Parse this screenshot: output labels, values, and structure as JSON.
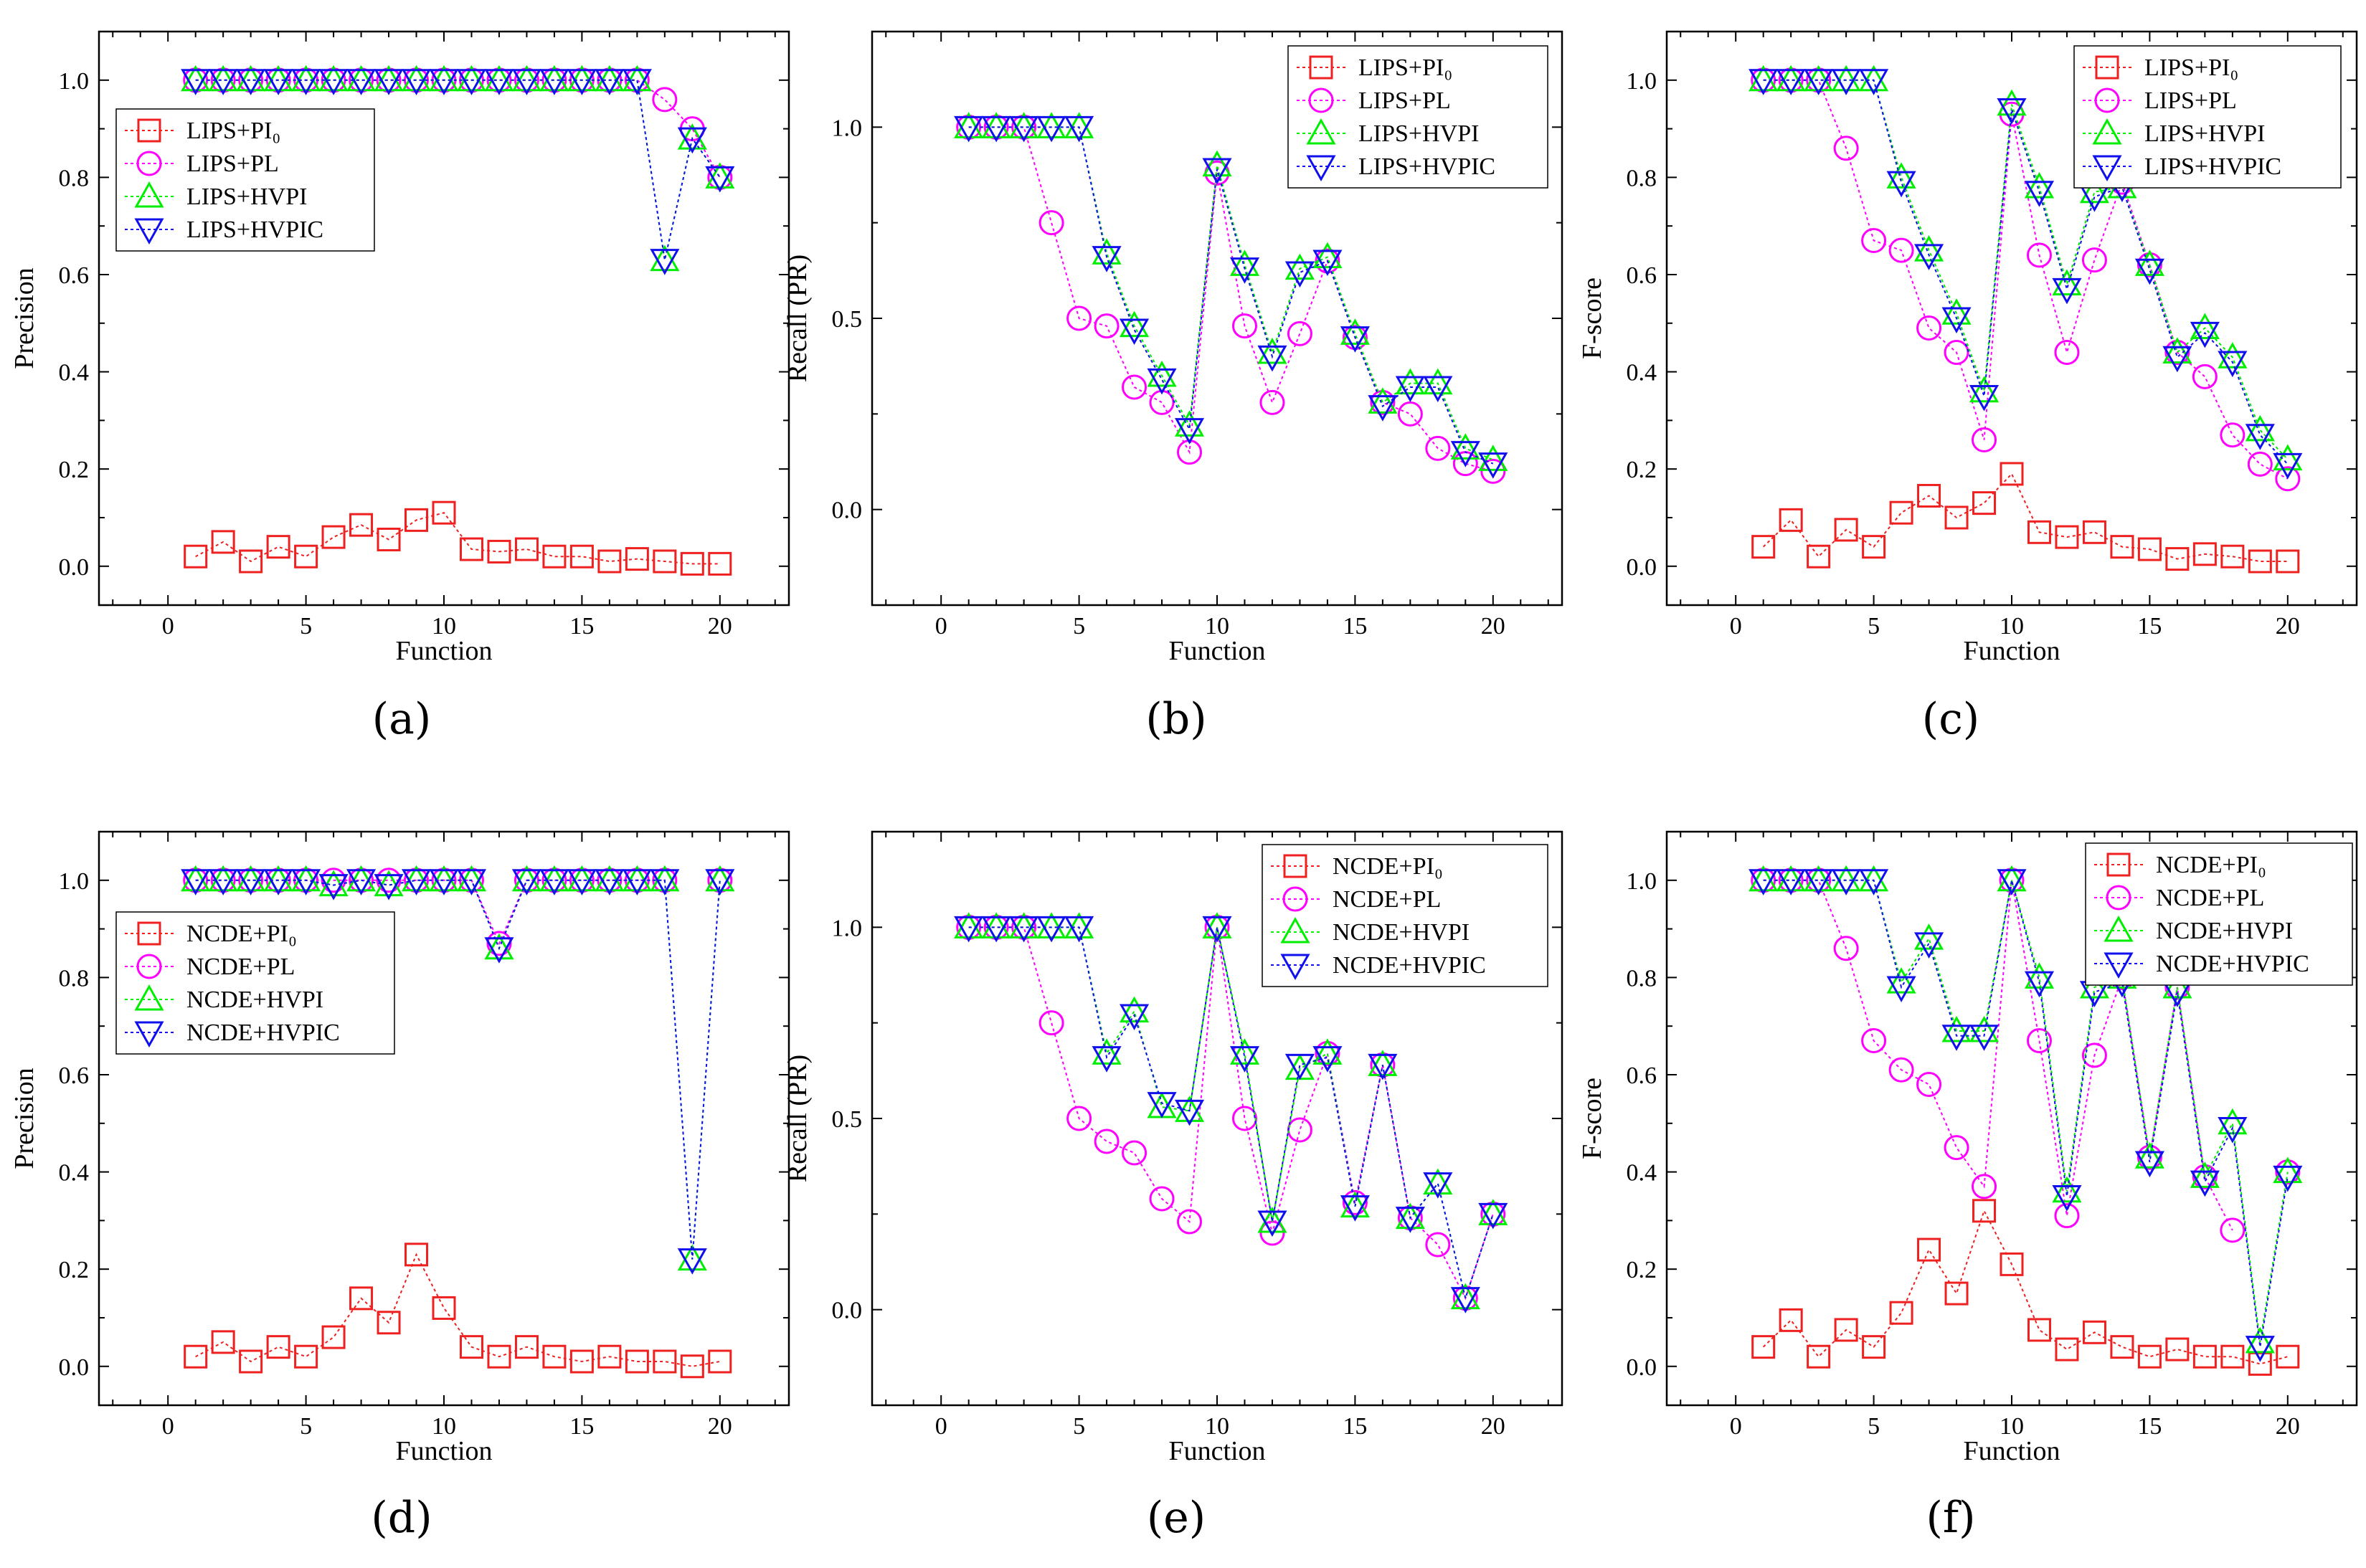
{
  "figure": {
    "panel_labels": [
      "(a)",
      "(b)",
      "(c)",
      "(d)",
      "(e)",
      "(f)"
    ]
  },
  "styles": {
    "series_colors": [
      "#ee2020",
      "#ff00ff",
      "#00ee00",
      "#1010ee"
    ],
    "markers": [
      "square",
      "circle",
      "triangle-up",
      "triangle-down"
    ]
  },
  "chart_data": [
    {
      "type": "line",
      "panel": "(a)",
      "xlabel": "Function",
      "ylabel": "Precision",
      "xlim": [
        -2.5,
        22.5
      ],
      "ylim": [
        -0.08,
        1.1
      ],
      "xticks": [
        0,
        5,
        10,
        15,
        20
      ],
      "yticks": [
        0.0,
        0.2,
        0.4,
        0.6,
        0.8,
        1.0
      ],
      "ytick_labels": [
        "0.0",
        "0.2",
        "0.4",
        "0.6",
        "0.8",
        "1.0"
      ],
      "legend_position": "left",
      "x": [
        1,
        2,
        3,
        4,
        5,
        6,
        7,
        8,
        9,
        10,
        11,
        12,
        13,
        14,
        15,
        16,
        17,
        18,
        19,
        20
      ],
      "series": [
        {
          "name": "LIPS+PI₀",
          "values": [
            0.02,
            0.05,
            0.01,
            0.04,
            0.02,
            0.06,
            0.085,
            0.055,
            0.095,
            0.11,
            0.035,
            0.03,
            0.035,
            0.02,
            0.02,
            0.01,
            0.015,
            0.01,
            0.005,
            0.005
          ]
        },
        {
          "name": "LIPS+PL",
          "values": [
            1.0,
            1.0,
            1.0,
            1.0,
            1.0,
            1.0,
            1.0,
            1.0,
            1.0,
            1.0,
            1.0,
            1.0,
            1.0,
            1.0,
            1.0,
            1.0,
            1.0,
            0.96,
            0.9,
            0.8
          ]
        },
        {
          "name": "LIPS+HVPI",
          "values": [
            1.0,
            1.0,
            1.0,
            1.0,
            1.0,
            1.0,
            1.0,
            1.0,
            1.0,
            1.0,
            1.0,
            1.0,
            1.0,
            1.0,
            1.0,
            1.0,
            1.0,
            0.63,
            0.88,
            0.8
          ]
        },
        {
          "name": "LIPS+HVPIC",
          "values": [
            1.0,
            1.0,
            1.0,
            1.0,
            1.0,
            1.0,
            1.0,
            1.0,
            1.0,
            1.0,
            1.0,
            1.0,
            1.0,
            1.0,
            1.0,
            1.0,
            1.0,
            0.63,
            0.88,
            0.8
          ]
        }
      ]
    },
    {
      "type": "line",
      "panel": "(b)",
      "xlabel": "Function",
      "ylabel": "Recall (PR)",
      "xlim": [
        -2.5,
        22.5
      ],
      "ylim": [
        -0.25,
        1.25
      ],
      "xticks": [
        0,
        5,
        10,
        15,
        20
      ],
      "yticks": [
        0.0,
        0.5,
        1.0
      ],
      "ytick_labels": [
        "0.0",
        "0.5",
        "1.0"
      ],
      "legend_position": "top-right",
      "x": [
        1,
        2,
        3,
        4,
        5,
        6,
        7,
        8,
        9,
        10,
        11,
        12,
        13,
        14,
        15,
        16,
        17,
        18,
        19,
        20
      ],
      "series": [
        {
          "name": "LIPS+PI₀",
          "values": [
            null,
            null,
            null,
            null,
            null,
            null,
            null,
            null,
            null,
            null,
            null,
            null,
            null,
            null,
            null,
            null,
            null,
            null,
            null,
            null
          ]
        },
        {
          "name": "LIPS+PL",
          "values": [
            1.0,
            1.0,
            1.0,
            0.75,
            0.5,
            0.48,
            0.32,
            0.28,
            0.15,
            0.88,
            0.48,
            0.28,
            0.46,
            0.65,
            0.45,
            0.28,
            0.25,
            0.16,
            0.12,
            0.1
          ]
        },
        {
          "name": "LIPS+HVPI",
          "values": [
            1.0,
            1.0,
            1.0,
            1.0,
            1.0,
            0.67,
            0.48,
            0.35,
            0.22,
            0.9,
            0.64,
            0.41,
            0.63,
            0.66,
            0.46,
            0.28,
            0.33,
            0.33,
            0.16,
            0.13
          ]
        },
        {
          "name": "LIPS+HVPIC",
          "values": [
            1.0,
            1.0,
            1.0,
            1.0,
            1.0,
            0.66,
            0.47,
            0.34,
            0.21,
            0.89,
            0.63,
            0.4,
            0.62,
            0.65,
            0.45,
            0.27,
            0.32,
            0.32,
            0.15,
            0.12
          ]
        }
      ]
    },
    {
      "type": "line",
      "panel": "(c)",
      "xlabel": "Function",
      "ylabel": "F-score",
      "xlim": [
        -2.5,
        22.5
      ],
      "ylim": [
        -0.08,
        1.1
      ],
      "xticks": [
        0,
        5,
        10,
        15,
        20
      ],
      "yticks": [
        0.0,
        0.2,
        0.4,
        0.6,
        0.8,
        1.0
      ],
      "ytick_labels": [
        "0.0",
        "0.2",
        "0.4",
        "0.6",
        "0.8",
        "1.0"
      ],
      "legend_position": "top-right",
      "x": [
        1,
        2,
        3,
        4,
        5,
        6,
        7,
        8,
        9,
        10,
        11,
        12,
        13,
        14,
        15,
        16,
        17,
        18,
        19,
        20
      ],
      "series": [
        {
          "name": "LIPS+PI₀",
          "values": [
            0.04,
            0.095,
            0.02,
            0.075,
            0.04,
            0.11,
            0.145,
            0.1,
            0.13,
            0.19,
            0.07,
            0.06,
            0.07,
            0.04,
            0.035,
            0.015,
            0.025,
            0.02,
            0.01,
            0.01
          ]
        },
        {
          "name": "LIPS+PL",
          "values": [
            1.0,
            1.0,
            1.0,
            0.86,
            0.67,
            0.65,
            0.49,
            0.44,
            0.26,
            0.93,
            0.64,
            0.44,
            0.63,
            0.79,
            0.62,
            0.44,
            0.39,
            0.27,
            0.21,
            0.18
          ]
        },
        {
          "name": "LIPS+HVPI",
          "values": [
            1.0,
            1.0,
            1.0,
            1.0,
            1.0,
            0.8,
            0.65,
            0.52,
            0.36,
            0.95,
            0.78,
            0.58,
            0.77,
            0.78,
            0.62,
            0.44,
            0.49,
            0.43,
            0.28,
            0.22
          ]
        },
        {
          "name": "LIPS+HVPIC",
          "values": [
            1.0,
            1.0,
            1.0,
            1.0,
            1.0,
            0.79,
            0.64,
            0.51,
            0.35,
            0.94,
            0.77,
            0.57,
            0.76,
            0.78,
            0.61,
            0.43,
            0.48,
            0.42,
            0.27,
            0.21
          ]
        }
      ]
    },
    {
      "type": "line",
      "panel": "(d)",
      "xlabel": "Function",
      "ylabel": "Precision",
      "xlim": [
        -2.5,
        22.5
      ],
      "ylim": [
        -0.08,
        1.1
      ],
      "xticks": [
        0,
        5,
        10,
        15,
        20
      ],
      "yticks": [
        0.0,
        0.2,
        0.4,
        0.6,
        0.8,
        1.0
      ],
      "ytick_labels": [
        "0.0",
        "0.2",
        "0.4",
        "0.6",
        "0.8",
        "1.0"
      ],
      "legend_position": "left",
      "x": [
        1,
        2,
        3,
        4,
        5,
        6,
        7,
        8,
        9,
        10,
        11,
        12,
        13,
        14,
        15,
        16,
        17,
        18,
        19,
        20
      ],
      "series": [
        {
          "name": "NCDE+PI₀",
          "values": [
            0.02,
            0.05,
            0.01,
            0.04,
            0.02,
            0.06,
            0.14,
            0.09,
            0.23,
            0.12,
            0.04,
            0.02,
            0.04,
            0.02,
            0.01,
            0.02,
            0.01,
            0.01,
            0.0,
            0.01
          ]
        },
        {
          "name": "NCDE+PL",
          "values": [
            1.0,
            1.0,
            1.0,
            1.0,
            1.0,
            1.0,
            1.0,
            1.0,
            1.0,
            1.0,
            1.0,
            0.87,
            1.0,
            1.0,
            1.0,
            1.0,
            1.0,
            1.0,
            null,
            1.0
          ]
        },
        {
          "name": "NCDE+HVPI",
          "values": [
            1.0,
            1.0,
            1.0,
            1.0,
            1.0,
            0.99,
            1.0,
            0.99,
            1.0,
            1.0,
            1.0,
            0.86,
            1.0,
            1.0,
            1.0,
            1.0,
            1.0,
            1.0,
            0.22,
            1.0
          ]
        },
        {
          "name": "NCDE+HVPIC",
          "values": [
            1.0,
            1.0,
            1.0,
            1.0,
            1.0,
            0.99,
            1.0,
            0.99,
            1.0,
            1.0,
            1.0,
            0.86,
            1.0,
            1.0,
            1.0,
            1.0,
            1.0,
            1.0,
            0.22,
            1.0
          ]
        }
      ]
    },
    {
      "type": "line",
      "panel": "(e)",
      "xlabel": "Function",
      "ylabel": "Recall (PR)",
      "xlim": [
        -2.5,
        22.5
      ],
      "ylim": [
        -0.25,
        1.25
      ],
      "xticks": [
        0,
        5,
        10,
        15,
        20
      ],
      "yticks": [
        0.0,
        0.5,
        1.0
      ],
      "ytick_labels": [
        "0.0",
        "0.5",
        "1.0"
      ],
      "legend_position": "top-right",
      "x": [
        1,
        2,
        3,
        4,
        5,
        6,
        7,
        8,
        9,
        10,
        11,
        12,
        13,
        14,
        15,
        16,
        17,
        18,
        19,
        20
      ],
      "series": [
        {
          "name": "NCDE+PI₀",
          "values": [
            null,
            null,
            null,
            null,
            null,
            null,
            null,
            null,
            null,
            null,
            null,
            null,
            null,
            null,
            null,
            null,
            null,
            null,
            null,
            null
          ]
        },
        {
          "name": "NCDE+PL",
          "values": [
            1.0,
            1.0,
            1.0,
            0.75,
            0.5,
            0.44,
            0.41,
            0.29,
            0.23,
            1.0,
            0.5,
            0.2,
            0.47,
            0.67,
            0.28,
            0.64,
            0.24,
            0.17,
            0.03,
            0.25
          ]
        },
        {
          "name": "NCDE+HVPI",
          "values": [
            1.0,
            1.0,
            1.0,
            1.0,
            1.0,
            0.67,
            0.78,
            0.53,
            0.52,
            1.0,
            0.67,
            0.23,
            0.63,
            0.67,
            0.27,
            0.64,
            0.24,
            0.33,
            0.03,
            0.25
          ]
        },
        {
          "name": "NCDE+HVPIC",
          "values": [
            1.0,
            1.0,
            1.0,
            1.0,
            1.0,
            0.66,
            0.77,
            0.54,
            0.52,
            1.0,
            0.66,
            0.23,
            0.64,
            0.66,
            0.27,
            0.64,
            0.24,
            0.33,
            0.03,
            0.25
          ]
        }
      ]
    },
    {
      "type": "line",
      "panel": "(f)",
      "xlabel": "Function",
      "ylabel": "F-score",
      "xlim": [
        -2.5,
        22.5
      ],
      "ylim": [
        -0.08,
        1.1
      ],
      "xticks": [
        0,
        5,
        10,
        15,
        20
      ],
      "yticks": [
        0.0,
        0.2,
        0.4,
        0.6,
        0.8,
        1.0
      ],
      "ytick_labels": [
        "0.0",
        "0.2",
        "0.4",
        "0.6",
        "0.8",
        "1.0"
      ],
      "legend_position": "top-right",
      "x": [
        1,
        2,
        3,
        4,
        5,
        6,
        7,
        8,
        9,
        10,
        11,
        12,
        13,
        14,
        15,
        16,
        17,
        18,
        19,
        20
      ],
      "series": [
        {
          "name": "NCDE+PI₀",
          "values": [
            0.04,
            0.095,
            0.02,
            0.075,
            0.04,
            0.11,
            0.24,
            0.15,
            0.32,
            0.21,
            0.075,
            0.035,
            0.07,
            0.04,
            0.02,
            0.035,
            0.02,
            0.02,
            0.005,
            0.02
          ]
        },
        {
          "name": "NCDE+PL",
          "values": [
            1.0,
            1.0,
            1.0,
            0.86,
            0.67,
            0.61,
            0.58,
            0.45,
            0.37,
            1.0,
            0.67,
            0.31,
            0.64,
            0.8,
            0.43,
            0.78,
            0.39,
            0.28,
            null,
            0.4
          ]
        },
        {
          "name": "NCDE+HVPI",
          "values": [
            1.0,
            1.0,
            1.0,
            1.0,
            1.0,
            0.79,
            0.88,
            0.69,
            0.69,
            1.0,
            0.8,
            0.36,
            0.78,
            0.8,
            0.43,
            0.78,
            0.39,
            0.5,
            0.05,
            0.4
          ]
        },
        {
          "name": "NCDE+HVPIC",
          "values": [
            1.0,
            1.0,
            1.0,
            1.0,
            1.0,
            0.78,
            0.87,
            0.68,
            0.68,
            1.0,
            0.79,
            0.35,
            0.77,
            0.79,
            0.42,
            0.77,
            0.38,
            0.49,
            0.04,
            0.39
          ]
        }
      ]
    }
  ]
}
